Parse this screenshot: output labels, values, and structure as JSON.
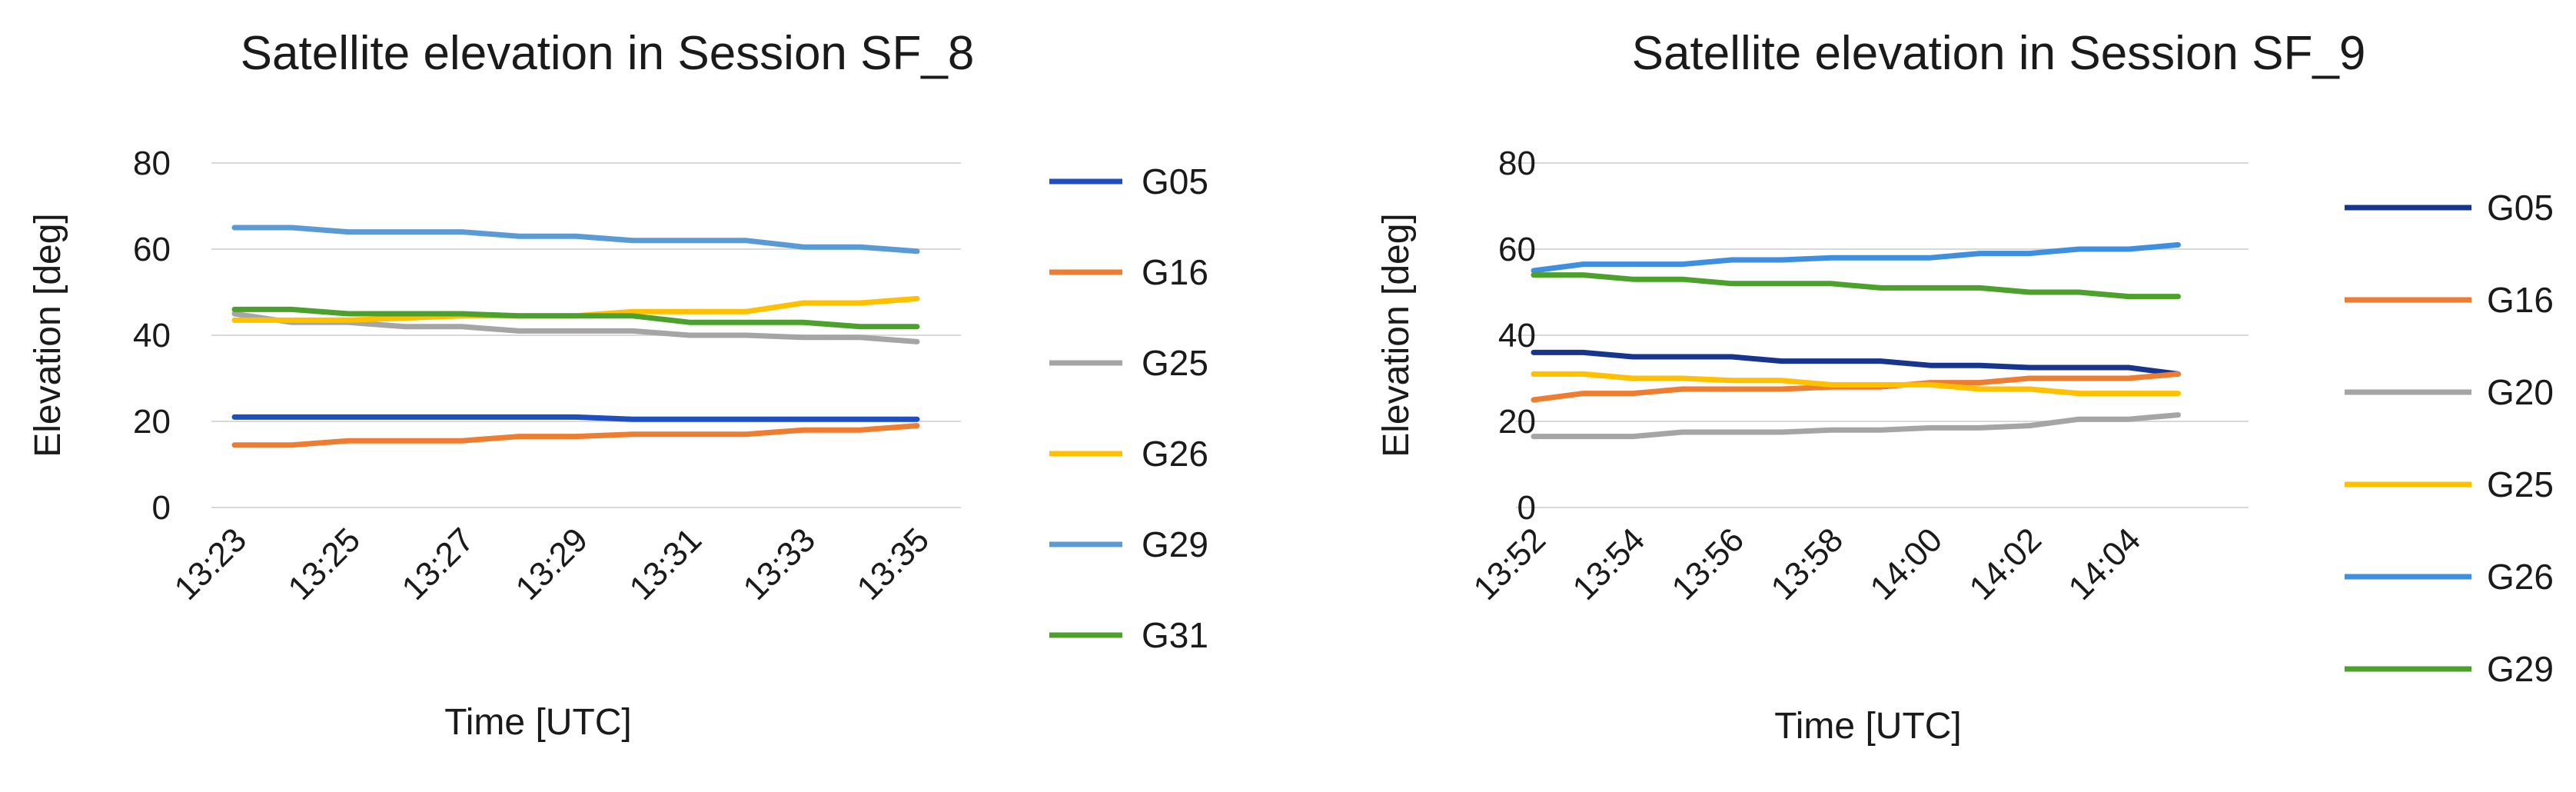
{
  "chart_data": [
    {
      "type": "line",
      "title": "Satellite elevation in Session SF_8",
      "xlabel": "Time [UTC]",
      "ylabel": "Elevation [deg]",
      "ylim": [
        0,
        80
      ],
      "yticks": [
        "0",
        "20",
        "40",
        "60",
        "80"
      ],
      "categories": [
        "13:23",
        "13:24",
        "13:25",
        "13:26",
        "13:27",
        "13:28",
        "13:29",
        "13:30",
        "13:31",
        "13:32",
        "13:33",
        "13:34",
        "13:35"
      ],
      "tick_labels": [
        "13:23",
        "13:25",
        "13:27",
        "13:29",
        "13:31",
        "13:33",
        "13:35"
      ],
      "grid": true,
      "legend_position": "right",
      "series": [
        {
          "name": "G05",
          "color": "#1f4fbf",
          "values": [
            21,
            21,
            21,
            21,
            21,
            21,
            21,
            20.5,
            20.5,
            20.5,
            20.5,
            20.5,
            20.5
          ]
        },
        {
          "name": "G16",
          "color": "#ed7d31",
          "values": [
            14.5,
            14.5,
            15.5,
            15.5,
            15.5,
            16.5,
            16.5,
            17,
            17,
            17,
            18,
            18,
            19
          ]
        },
        {
          "name": "G25",
          "color": "#a5a5a5",
          "values": [
            45,
            43,
            43,
            42,
            42,
            41,
            41,
            41,
            40,
            40,
            39.5,
            39.5,
            38.5
          ]
        },
        {
          "name": "G26",
          "color": "#ffc000",
          "values": [
            43.5,
            43.5,
            43.5,
            44,
            44.5,
            44.5,
            44.5,
            45.5,
            45.5,
            45.5,
            47.5,
            47.5,
            48.5
          ]
        },
        {
          "name": "G29",
          "color": "#5b9bd5",
          "values": [
            65,
            65,
            64,
            64,
            64,
            63,
            63,
            62,
            62,
            62,
            60.5,
            60.5,
            59.5
          ]
        },
        {
          "name": "G31",
          "color": "#4ca02c",
          "values": [
            46,
            46,
            45,
            45,
            45,
            44.5,
            44.5,
            44.5,
            43,
            43,
            43,
            42,
            42
          ]
        }
      ]
    },
    {
      "type": "line",
      "title": "Satellite elevation in Session SF_9",
      "xlabel": "Time [UTC]",
      "ylabel": "Elevation [deg]",
      "ylim": [
        0,
        80
      ],
      "yticks": [
        "0",
        "20",
        "40",
        "60",
        "80"
      ],
      "categories": [
        "13:52",
        "13:53",
        "13:54",
        "13:55",
        "13:56",
        "13:57",
        "13:58",
        "13:59",
        "14:00",
        "14:01",
        "14:02",
        "14:03",
        "14:04",
        "14:05"
      ],
      "tick_labels": [
        "13:52",
        "13:54",
        "13:56",
        "13:58",
        "14:00",
        "14:02",
        "14:04"
      ],
      "grid": true,
      "legend_position": "right",
      "series": [
        {
          "name": "G05",
          "color": "#17358f",
          "values": [
            36,
            36,
            35,
            35,
            35,
            34,
            34,
            34,
            33,
            33,
            32.5,
            32.5,
            32.5,
            31
          ]
        },
        {
          "name": "G16",
          "color": "#ed7d31",
          "values": [
            25,
            26.5,
            26.5,
            27.5,
            27.5,
            27.5,
            28,
            28,
            29,
            29,
            30,
            30,
            30,
            31
          ]
        },
        {
          "name": "G20",
          "color": "#a5a5a5",
          "values": [
            16.5,
            16.5,
            16.5,
            17.5,
            17.5,
            17.5,
            18,
            18,
            18.5,
            18.5,
            19,
            20.5,
            20.5,
            21.5
          ]
        },
        {
          "name": "G25",
          "color": "#ffc000",
          "values": [
            31,
            31,
            30,
            30,
            29.5,
            29.5,
            28.5,
            28.5,
            28.5,
            27.5,
            27.5,
            26.5,
            26.5,
            26.5
          ]
        },
        {
          "name": "G26",
          "color": "#3f8fe0",
          "values": [
            55,
            56.5,
            56.5,
            56.5,
            57.5,
            57.5,
            58,
            58,
            58,
            59,
            59,
            60,
            60,
            61
          ]
        },
        {
          "name": "G29",
          "color": "#4ca02c",
          "values": [
            54,
            54,
            53,
            53,
            52,
            52,
            52,
            51,
            51,
            51,
            50,
            50,
            49,
            49
          ]
        }
      ]
    }
  ]
}
